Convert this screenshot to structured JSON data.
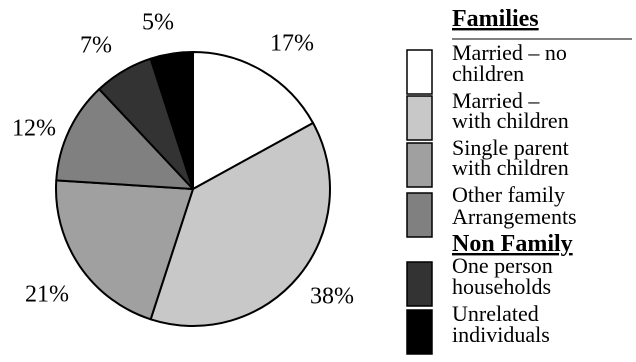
{
  "chart_data": {
    "type": "pie",
    "title": "",
    "groups": [
      {
        "name": "Families",
        "entries": [
          0,
          1,
          2,
          3
        ]
      },
      {
        "name": "Non Family",
        "entries": [
          4,
          5
        ]
      }
    ],
    "slices": [
      {
        "label": "Married – no children",
        "lines": [
          "Married – no",
          "children"
        ],
        "value": 17,
        "value_label": "17%",
        "color": "#ffffff"
      },
      {
        "label": "Married – with children",
        "lines": [
          "Married –",
          "with children"
        ],
        "value": 38,
        "value_label": "38%",
        "color": "#c8c8c8"
      },
      {
        "label": "Single parent with children",
        "lines": [
          "Single parent",
          "with children"
        ],
        "value": 21,
        "value_label": "21%",
        "color": "#a0a0a0"
      },
      {
        "label": "Other family Arrangements",
        "lines": [
          "Other family",
          "Arrangements"
        ],
        "value": 12,
        "value_label": "12%",
        "color": "#808080"
      },
      {
        "label": "One person households",
        "lines": [
          "One person",
          "households"
        ],
        "value": 7,
        "value_label": "7%",
        "color": "#333333"
      },
      {
        "label": "Unrelated individuals",
        "lines": [
          "Unrelated",
          "individuals"
        ],
        "value": 5,
        "value_label": "5%",
        "color": "#000000"
      }
    ],
    "start_angle_deg": 0,
    "direction": "clockwise",
    "legend_position": "right"
  }
}
